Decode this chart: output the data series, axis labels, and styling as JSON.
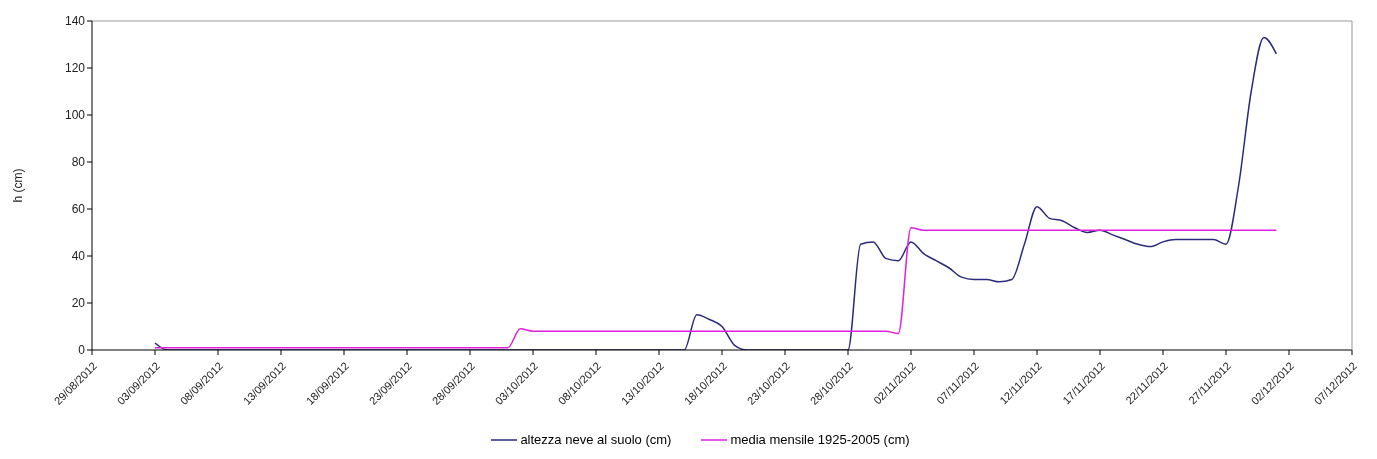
{
  "chart_data": {
    "type": "line",
    "ylabel": "h (cm)",
    "xlim": [
      "2012-08-29",
      "2012-12-07"
    ],
    "xticks": [
      {
        "value": "2012-08-29",
        "label": "29/08/2012"
      },
      {
        "value": "2012-09-03",
        "label": "03/09/2012"
      },
      {
        "value": "2012-09-08",
        "label": "08/09/2012"
      },
      {
        "value": "2012-09-13",
        "label": "13/09/2012"
      },
      {
        "value": "2012-09-18",
        "label": "18/09/2012"
      },
      {
        "value": "2012-09-23",
        "label": "23/09/2012"
      },
      {
        "value": "2012-09-28",
        "label": "28/09/2012"
      },
      {
        "value": "2012-10-03",
        "label": "03/10/2012"
      },
      {
        "value": "2012-10-08",
        "label": "08/10/2012"
      },
      {
        "value": "2012-10-13",
        "label": "13/10/2012"
      },
      {
        "value": "2012-10-18",
        "label": "18/10/2012"
      },
      {
        "value": "2012-10-23",
        "label": "23/10/2012"
      },
      {
        "value": "2012-10-28",
        "label": "28/10/2012"
      },
      {
        "value": "2012-11-02",
        "label": "02/11/2012"
      },
      {
        "value": "2012-11-07",
        "label": "07/11/2012"
      },
      {
        "value": "2012-11-12",
        "label": "12/11/2012"
      },
      {
        "value": "2012-11-17",
        "label": "17/11/2012"
      },
      {
        "value": "2012-11-22",
        "label": "22/11/2012"
      },
      {
        "value": "2012-11-27",
        "label": "27/11/2012"
      },
      {
        "value": "2012-12-02",
        "label": "02/12/2012"
      },
      {
        "value": "2012-12-07",
        "label": "07/12/2012"
      }
    ],
    "ylim": [
      0,
      140
    ],
    "yticks": [
      0,
      20,
      40,
      60,
      80,
      100,
      120,
      140
    ],
    "legend": "bottom",
    "marker": "none",
    "line_style": "solid",
    "series": [
      {
        "name": "altezza neve al suolo (cm)",
        "color": "#2b2a7c",
        "x": [
          "2012-09-03",
          "2012-09-04",
          "2012-10-15",
          "2012-10-16",
          "2012-10-17",
          "2012-10-18",
          "2012-10-19",
          "2012-10-20",
          "2012-10-21",
          "2012-10-28",
          "2012-10-29",
          "2012-10-30",
          "2012-10-31",
          "2012-11-01",
          "2012-11-02",
          "2012-11-03",
          "2012-11-04",
          "2012-11-05",
          "2012-11-06",
          "2012-11-07",
          "2012-11-08",
          "2012-11-09",
          "2012-11-10",
          "2012-11-11",
          "2012-11-12",
          "2012-11-13",
          "2012-11-14",
          "2012-11-15",
          "2012-11-16",
          "2012-11-17",
          "2012-11-18",
          "2012-11-19",
          "2012-11-20",
          "2012-11-21",
          "2012-11-22",
          "2012-11-23",
          "2012-11-24",
          "2012-11-25",
          "2012-11-26",
          "2012-11-27",
          "2012-11-28",
          "2012-11-29",
          "2012-11-30",
          "2012-12-01"
        ],
        "values": [
          3,
          0,
          0,
          15,
          13,
          10,
          2,
          0,
          0,
          0,
          45,
          46,
          39,
          38,
          46,
          41,
          38,
          35,
          31,
          30,
          30,
          29,
          30,
          45,
          61,
          56,
          55,
          52,
          50,
          51,
          49,
          47,
          45,
          44,
          46,
          47,
          47,
          47,
          47,
          45,
          70,
          110,
          133,
          126
        ]
      },
      {
        "name": "media mensile 1925-2005 (cm)",
        "color": "#e020e0",
        "x": [
          "2012-09-03",
          "2012-10-01",
          "2012-10-02",
          "2012-10-03",
          "2012-10-31",
          "2012-11-01",
          "2012-11-02",
          "2012-11-03",
          "2012-12-01"
        ],
        "values": [
          1,
          1,
          9,
          8,
          8,
          7,
          52,
          51,
          51
        ]
      }
    ]
  }
}
